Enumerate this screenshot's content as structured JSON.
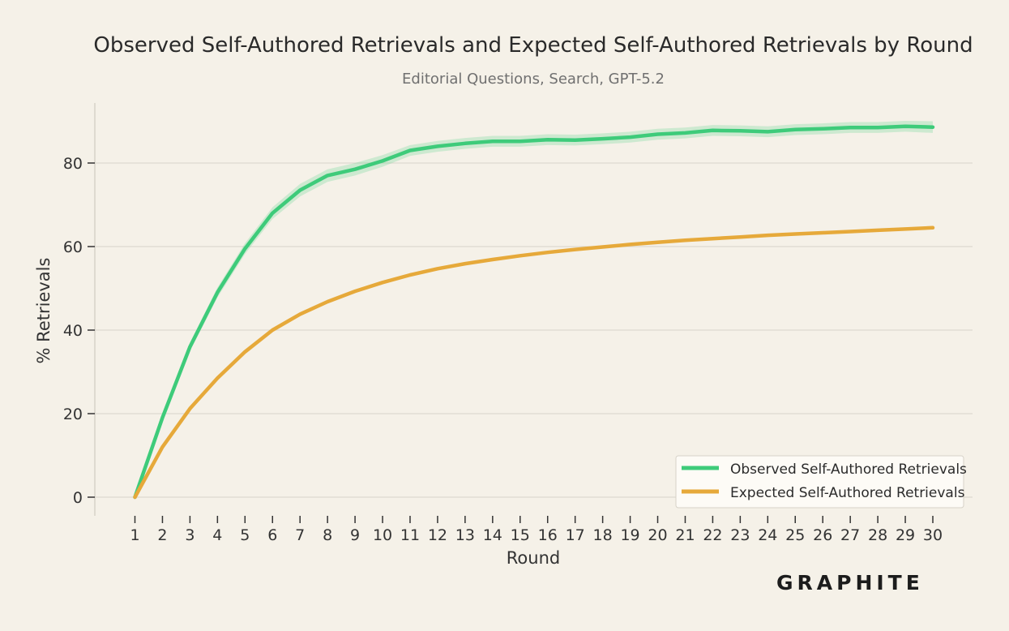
{
  "chart_data": {
    "type": "line",
    "title": "Observed Self-Authored Retrievals and Expected Self-Authored Retrievals by Round",
    "subtitle": "Editorial Questions, Search, GPT-5.2",
    "xlabel": "Round",
    "ylabel": "% Retrievals",
    "x": [
      1,
      2,
      3,
      4,
      5,
      6,
      7,
      8,
      9,
      10,
      11,
      12,
      13,
      14,
      15,
      16,
      17,
      18,
      19,
      20,
      21,
      22,
      23,
      24,
      25,
      26,
      27,
      28,
      29,
      30
    ],
    "xlim": [
      1,
      30
    ],
    "ylim": [
      0,
      90
    ],
    "yticks": [
      0,
      20,
      40,
      60,
      80
    ],
    "grid": "horizontal",
    "legend_position": "bottom-right",
    "series": [
      {
        "name": "Observed Self-Authored Retrievals",
        "color": "#3ecb7a",
        "band_color": "#3ecb7a",
        "values": [
          0,
          19,
          36,
          49,
          59.5,
          68,
          73.5,
          77,
          78.5,
          80.5,
          83,
          84,
          84.7,
          85.2,
          85.2,
          85.6,
          85.5,
          85.8,
          86.2,
          86.9,
          87.2,
          87.8,
          87.7,
          87.5,
          88,
          88.2,
          88.5,
          88.5,
          88.8,
          88.6
        ],
        "ci_width": [
          0,
          0.8,
          1,
          1.2,
          1.3,
          1.4,
          1.5,
          1.5,
          1.5,
          1.4,
          1.3,
          1.3,
          1.3,
          1.3,
          1.3,
          1.3,
          1.3,
          1.3,
          1.3,
          1.3,
          1.3,
          1.3,
          1.3,
          1.3,
          1.3,
          1.3,
          1.3,
          1.3,
          1.3,
          1.4
        ]
      },
      {
        "name": "Expected Self-Authored Retrievals",
        "color": "#e6a93a",
        "values": [
          0,
          12,
          21.2,
          28.5,
          34.8,
          40,
          43.8,
          46.8,
          49.3,
          51.4,
          53.2,
          54.7,
          55.9,
          56.9,
          57.8,
          58.6,
          59.3,
          59.9,
          60.5,
          61,
          61.5,
          61.9,
          62.3,
          62.7,
          63,
          63.3,
          63.6,
          63.9,
          64.2,
          64.5
        ]
      }
    ]
  },
  "brand": {
    "logo_text": "GRAPHITE"
  }
}
